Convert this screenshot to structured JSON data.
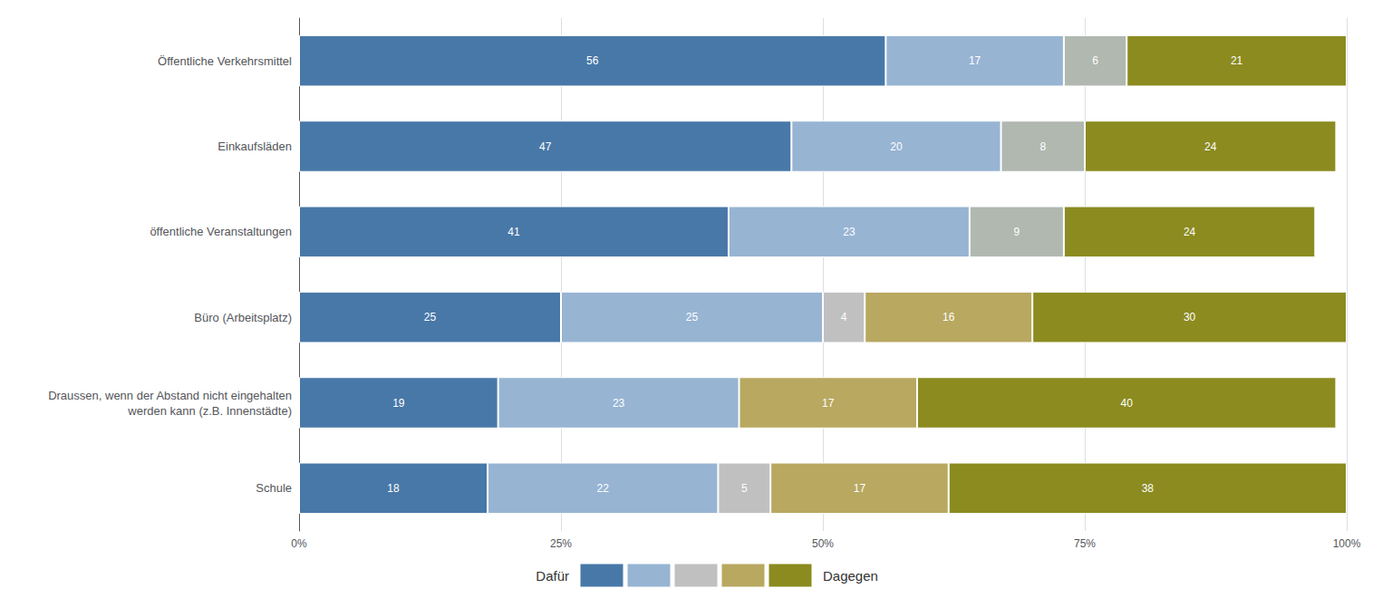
{
  "chart_data": {
    "type": "bar",
    "orientation": "horizontal",
    "stacked": true,
    "data_labels": true,
    "grid": true,
    "categories": [
      "Öffentliche Verkehrsmittel",
      "Einkaufsläden",
      "öffentliche Veranstaltungen",
      "Büro (Arbeitsplatz)",
      "Draussen, wenn der Abstand nicht eingehalten\nwerden kann (z.B. Innenstädte)",
      "Schule"
    ],
    "xlim": [
      0,
      100
    ],
    "xticks": [
      {
        "value": 0,
        "label": "0%"
      },
      {
        "value": 25,
        "label": "25%"
      },
      {
        "value": 50,
        "label": "50%"
      },
      {
        "value": 75,
        "label": "75%"
      },
      {
        "value": 100,
        "label": "100%"
      }
    ],
    "series": [
      {
        "color": "#4878a8",
        "values": [
          56,
          47,
          41,
          25,
          19,
          18
        ]
      },
      {
        "color": "#97b4d3",
        "values": [
          17,
          20,
          23,
          25,
          23,
          22
        ]
      },
      {
        "color": "#c0c0c0",
        "colors": [
          "#b0b8b0",
          "#b0b8b0",
          "#b0b8b0",
          "#c0c0c0",
          null,
          "#c0c0c0"
        ],
        "values": [
          6,
          8,
          9,
          4,
          null,
          5
        ]
      },
      {
        "color": "#b8a860",
        "values": [
          null,
          null,
          null,
          16,
          17,
          17
        ]
      },
      {
        "color": "#8b8b20",
        "values": [
          21,
          24,
          24,
          30,
          40,
          38
        ]
      }
    ],
    "annotations": [
      "Dafür",
      "Dagegen"
    ]
  }
}
